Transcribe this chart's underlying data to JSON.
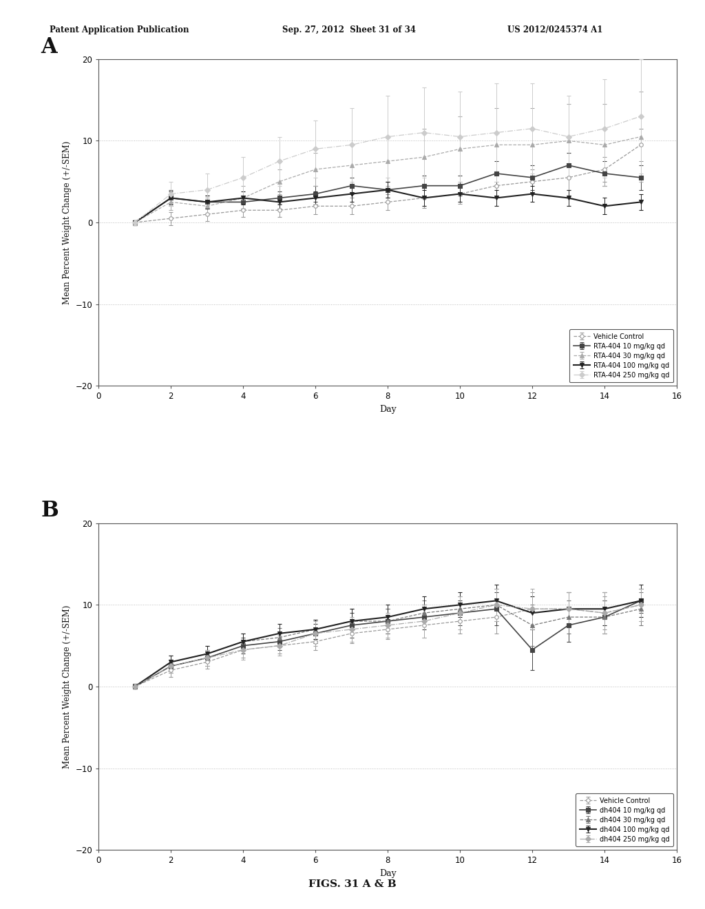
{
  "header_left": "Patent Application Publication",
  "header_mid": "Sep. 27, 2012  Sheet 31 of 34",
  "header_right": "US 2012/0245374 A1",
  "footer": "FIGS. 31 A & B",
  "panel_A_label": "A",
  "panel_B_label": "B",
  "xlabel": "Day",
  "ylabel": "Mean Percent Weight Change (+/-SEM)",
  "xlim": [
    0,
    16
  ],
  "ylim": [
    -20,
    20
  ],
  "yticks": [
    -20,
    -10,
    0,
    10,
    20
  ],
  "xticks": [
    0,
    2,
    4,
    6,
    8,
    10,
    12,
    14,
    16
  ],
  "days": [
    1,
    2,
    3,
    4,
    5,
    6,
    7,
    8,
    9,
    10,
    11,
    12,
    13,
    14,
    15
  ],
  "panel_A": {
    "series": [
      {
        "label": "Vehicle Control",
        "marker": "o",
        "color": "#999999",
        "linestyle": "--",
        "linewidth": 0.9,
        "markersize": 4,
        "markerfacecolor": "white",
        "values": [
          0.0,
          0.5,
          1.0,
          1.5,
          1.5,
          2.0,
          2.0,
          2.5,
          3.0,
          3.5,
          4.5,
          5.0,
          5.5,
          6.5,
          9.5
        ],
        "errors": [
          0.3,
          0.8,
          0.8,
          0.8,
          0.8,
          1.0,
          1.0,
          1.0,
          1.2,
          1.2,
          1.5,
          1.5,
          1.5,
          1.5,
          2.0
        ]
      },
      {
        "label": "RTA-404 10 mg/kg qd",
        "marker": "s",
        "color": "#444444",
        "linestyle": "-",
        "linewidth": 1.2,
        "markersize": 4,
        "markerfacecolor": "#444444",
        "values": [
          0.0,
          3.0,
          2.5,
          2.5,
          3.0,
          3.5,
          4.5,
          4.0,
          4.5,
          4.5,
          6.0,
          5.5,
          7.0,
          6.0,
          5.5
        ],
        "errors": [
          0.3,
          1.0,
          0.8,
          0.8,
          0.8,
          1.0,
          1.0,
          1.0,
          1.2,
          1.2,
          1.5,
          1.5,
          1.5,
          1.5,
          1.5
        ]
      },
      {
        "label": "RTA-404 30 mg/kg qd",
        "marker": "^",
        "color": "#aaaaaa",
        "linestyle": "--",
        "linewidth": 0.9,
        "markersize": 4,
        "markerfacecolor": "#aaaaaa",
        "values": [
          0.0,
          2.5,
          2.0,
          3.0,
          5.0,
          6.5,
          7.0,
          7.5,
          8.0,
          9.0,
          9.5,
          9.5,
          10.0,
          9.5,
          10.5
        ],
        "errors": [
          0.3,
          1.0,
          1.0,
          1.5,
          1.5,
          2.0,
          2.5,
          3.0,
          3.5,
          4.0,
          4.5,
          4.5,
          4.5,
          5.0,
          5.5
        ]
      },
      {
        "label": "RTA-404 100 mg/kg qd",
        "marker": "v",
        "color": "#222222",
        "linestyle": "-",
        "linewidth": 1.5,
        "markersize": 5,
        "markerfacecolor": "#222222",
        "values": [
          0.0,
          3.0,
          2.5,
          3.0,
          2.5,
          3.0,
          3.5,
          4.0,
          3.0,
          3.5,
          3.0,
          3.5,
          3.0,
          2.0,
          2.5
        ],
        "errors": [
          0.3,
          0.8,
          0.8,
          0.8,
          0.8,
          0.8,
          1.0,
          1.0,
          1.0,
          1.0,
          1.0,
          1.0,
          1.0,
          1.0,
          1.0
        ]
      },
      {
        "label": "RTA-404 250 mg/kg qd",
        "marker": "D",
        "color": "#cccccc",
        "linestyle": "-.",
        "linewidth": 0.9,
        "markersize": 4,
        "markerfacecolor": "#cccccc",
        "values": [
          0.0,
          3.5,
          4.0,
          5.5,
          7.5,
          9.0,
          9.5,
          10.5,
          11.0,
          10.5,
          11.0,
          11.5,
          10.5,
          11.5,
          13.0
        ],
        "errors": [
          0.3,
          1.5,
          2.0,
          2.5,
          3.0,
          3.5,
          4.5,
          5.0,
          5.5,
          5.5,
          6.0,
          5.5,
          5.0,
          6.0,
          7.0
        ]
      }
    ]
  },
  "panel_B": {
    "series": [
      {
        "label": "Vehicle Control",
        "marker": "o",
        "color": "#999999",
        "linestyle": "--",
        "linewidth": 0.9,
        "markersize": 4,
        "markerfacecolor": "white",
        "values": [
          0.0,
          2.0,
          3.0,
          4.5,
          5.0,
          5.5,
          6.5,
          7.0,
          7.5,
          8.0,
          8.5,
          9.5,
          9.5,
          9.0,
          10.0
        ],
        "errors": [
          0.3,
          0.8,
          0.8,
          1.0,
          1.0,
          1.0,
          1.2,
          1.2,
          1.5,
          1.5,
          2.0,
          2.0,
          2.0,
          2.0,
          2.0
        ]
      },
      {
        "label": "dh404 10 mg/kg qd",
        "marker": "s",
        "color": "#444444",
        "linestyle": "-",
        "linewidth": 1.2,
        "markersize": 4,
        "markerfacecolor": "#444444",
        "values": [
          0.0,
          2.5,
          3.5,
          5.0,
          5.5,
          6.5,
          7.5,
          8.0,
          8.5,
          9.0,
          9.5,
          4.5,
          7.5,
          8.5,
          10.5
        ],
        "errors": [
          0.3,
          0.8,
          1.0,
          1.0,
          1.0,
          1.2,
          1.5,
          1.5,
          1.5,
          1.5,
          2.0,
          2.5,
          2.0,
          2.0,
          1.5
        ]
      },
      {
        "label": "dh404 30 mg/kg qd",
        "marker": "^",
        "color": "#777777",
        "linestyle": "--",
        "linewidth": 0.9,
        "markersize": 4,
        "markerfacecolor": "#777777",
        "values": [
          0.0,
          3.0,
          4.0,
          5.5,
          6.0,
          7.0,
          8.0,
          8.0,
          9.0,
          9.5,
          10.0,
          7.5,
          8.5,
          8.5,
          9.5
        ],
        "errors": [
          0.3,
          0.8,
          1.0,
          1.0,
          1.2,
          1.2,
          1.5,
          1.5,
          1.5,
          1.5,
          2.0,
          2.5,
          2.0,
          2.0,
          2.0
        ]
      },
      {
        "label": "dh404 100 mg/kg qd",
        "marker": "v",
        "color": "#222222",
        "linestyle": "-",
        "linewidth": 1.5,
        "markersize": 5,
        "markerfacecolor": "#222222",
        "values": [
          0.0,
          3.0,
          4.0,
          5.5,
          6.5,
          7.0,
          8.0,
          8.5,
          9.5,
          10.0,
          10.5,
          9.0,
          9.5,
          9.5,
          10.5
        ],
        "errors": [
          0.3,
          0.8,
          1.0,
          1.0,
          1.2,
          1.2,
          1.5,
          1.5,
          1.5,
          1.5,
          2.0,
          2.0,
          2.0,
          2.0,
          2.0
        ]
      },
      {
        "label": "dh404 250 mg/kg qd",
        "marker": "D",
        "color": "#aaaaaa",
        "linestyle": "-.",
        "linewidth": 0.9,
        "markersize": 4,
        "markerfacecolor": "#aaaaaa",
        "values": [
          0.0,
          2.5,
          3.5,
          4.5,
          5.0,
          6.5,
          7.0,
          7.5,
          8.0,
          9.0,
          10.0,
          9.5,
          9.5,
          9.0,
          10.0
        ],
        "errors": [
          0.3,
          0.8,
          1.0,
          1.2,
          1.2,
          1.5,
          1.5,
          1.5,
          2.0,
          2.0,
          2.0,
          2.5,
          2.0,
          2.5,
          2.0
        ]
      }
    ]
  },
  "bg_color": "#ffffff",
  "plot_bg": "#ffffff",
  "grid_color": "#bbbbbb",
  "border_color": "#555555"
}
